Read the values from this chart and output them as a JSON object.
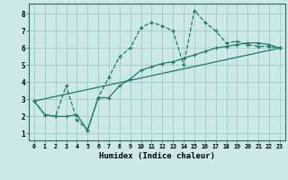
{
  "xlabel": "Humidex (Indice chaleur)",
  "bg_color": "#cce8e8",
  "grid_color": "#aacccc",
  "line_color": "#1a7a6e",
  "xlim": [
    -0.5,
    23.5
  ],
  "ylim": [
    0.6,
    8.6
  ],
  "xticks": [
    0,
    1,
    2,
    3,
    4,
    5,
    6,
    7,
    8,
    9,
    10,
    11,
    12,
    13,
    14,
    15,
    16,
    17,
    18,
    19,
    20,
    21,
    22,
    23
  ],
  "yticks": [
    1,
    2,
    3,
    4,
    5,
    6,
    7,
    8
  ],
  "line1_x": [
    0,
    1,
    2,
    3,
    4,
    5,
    6,
    7,
    8,
    9,
    10,
    11,
    12,
    13,
    14,
    15,
    16,
    17,
    18,
    19,
    20,
    21,
    22,
    23
  ],
  "line1_y": [
    2.9,
    2.1,
    2.0,
    3.8,
    1.8,
    1.2,
    3.1,
    4.3,
    5.5,
    6.0,
    7.2,
    7.5,
    7.3,
    7.0,
    5.0,
    8.2,
    7.5,
    7.0,
    6.3,
    6.4,
    6.2,
    6.1,
    6.1,
    6.0
  ],
  "line2_x": [
    0,
    1,
    2,
    3,
    4,
    5,
    6,
    7,
    8,
    9,
    10,
    11,
    12,
    13,
    14,
    15,
    16,
    17,
    18,
    19,
    20,
    21,
    22,
    23
  ],
  "line2_y": [
    2.9,
    2.1,
    2.0,
    2.0,
    2.1,
    1.2,
    3.1,
    3.1,
    3.8,
    4.2,
    4.7,
    4.9,
    5.1,
    5.2,
    5.4,
    5.6,
    5.8,
    6.0,
    6.1,
    6.2,
    6.3,
    6.3,
    6.2,
    6.0
  ],
  "line3_x": [
    0,
    23
  ],
  "line3_y": [
    2.9,
    6.0
  ]
}
